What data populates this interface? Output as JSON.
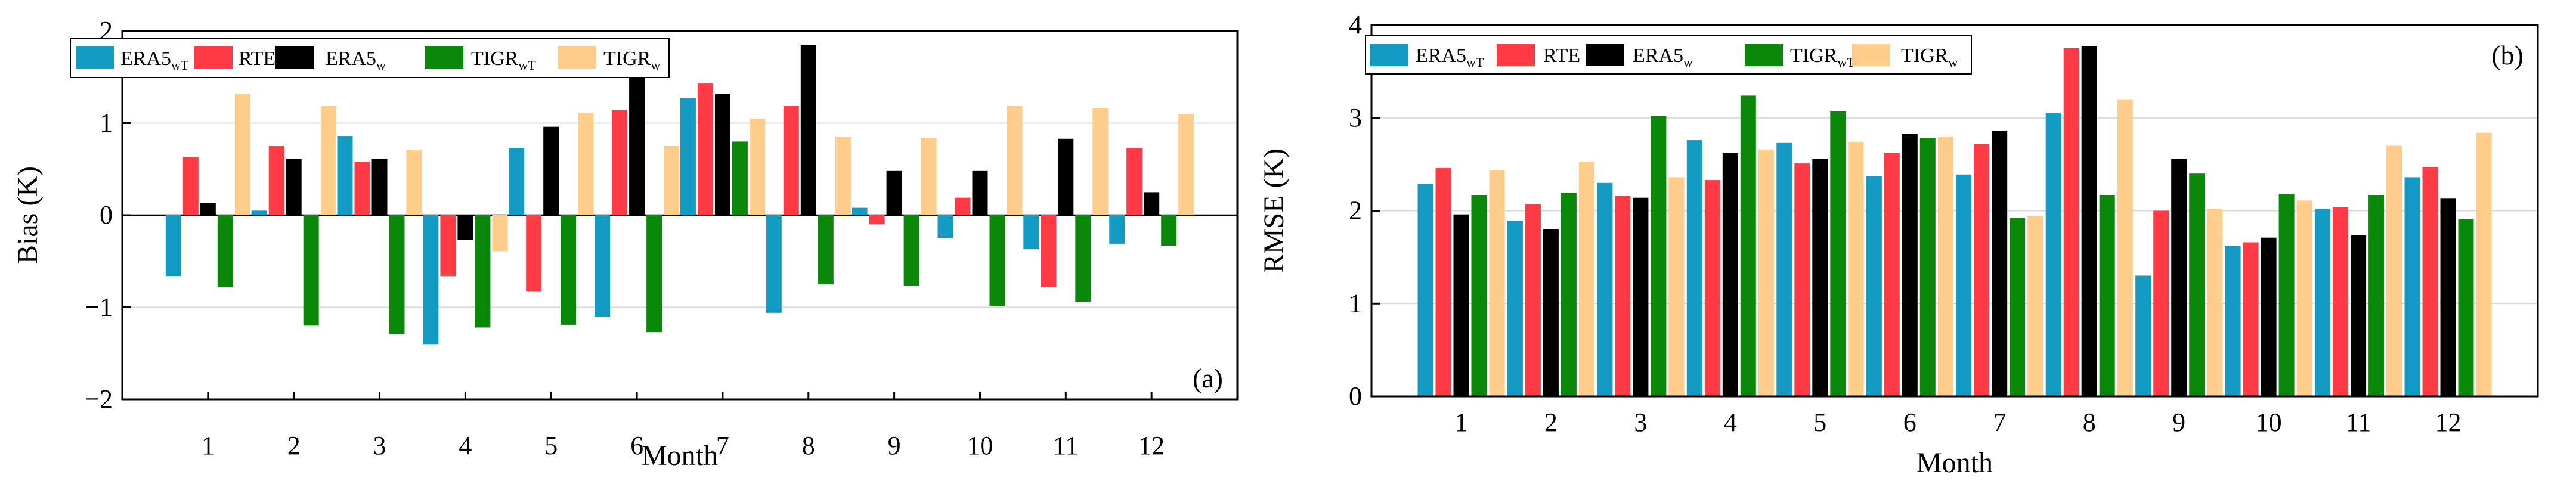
{
  "chart_data": [
    {
      "type": "bar",
      "panel_label": "(a)",
      "title": "",
      "xlabel": "Month",
      "ylabel": "Bias (K)",
      "ylim": [
        -2,
        2
      ],
      "yticks": [
        -2,
        -1,
        0,
        1,
        2
      ],
      "grid": true,
      "legend_position": "top-left",
      "categories": [
        "1",
        "2",
        "3",
        "4",
        "5",
        "6",
        "7",
        "8",
        "9",
        "10",
        "11",
        "12"
      ],
      "series": [
        {
          "name": "ERA5",
          "sub": "wT",
          "color": "#149bc4",
          "values": [
            -0.66,
            0.05,
            0.86,
            -1.4,
            0.73,
            -1.1,
            1.27,
            -1.06,
            0.08,
            -0.25,
            -0.37,
            -0.31
          ]
        },
        {
          "name": "RTE",
          "sub": "",
          "color": "#fe3a45",
          "values": [
            0.63,
            0.75,
            0.58,
            -0.66,
            -0.83,
            1.14,
            1.43,
            1.19,
            -0.1,
            0.19,
            -0.78,
            0.73
          ]
        },
        {
          "name": "ERA5",
          "sub": "w",
          "color": "#000000",
          "values": [
            0.13,
            0.61,
            0.61,
            -0.27,
            0.96,
            1.63,
            1.32,
            1.85,
            0.48,
            0.48,
            0.83,
            0.25
          ]
        },
        {
          "name": "TIGR",
          "sub": "wT",
          "color": "#0a880a",
          "values": [
            -0.78,
            -1.2,
            -1.29,
            -1.22,
            -1.19,
            -1.27,
            0.8,
            -0.75,
            -0.77,
            -0.99,
            -0.94,
            -0.33
          ]
        },
        {
          "name": "TIGR",
          "sub": "w",
          "color": "#fecd8c",
          "values": [
            1.32,
            1.19,
            0.71,
            -0.39,
            1.11,
            0.75,
            1.05,
            0.85,
            0.84,
            1.19,
            1.16,
            1.1
          ]
        }
      ]
    },
    {
      "type": "bar",
      "panel_label": "(b)",
      "title": "",
      "xlabel": "Month",
      "ylabel": "RMSE (K)",
      "ylim": [
        0,
        4
      ],
      "yticks": [
        0,
        1,
        2,
        3,
        4
      ],
      "grid": true,
      "legend_position": "top-left",
      "categories": [
        "1",
        "2",
        "3",
        "4",
        "5",
        "6",
        "7",
        "8",
        "9",
        "10",
        "11",
        "12"
      ],
      "series": [
        {
          "name": "ERA5",
          "sub": "wT",
          "color": "#149bc4",
          "values": [
            2.29,
            1.89,
            2.3,
            2.76,
            2.73,
            2.37,
            2.39,
            3.05,
            1.3,
            1.62,
            2.02,
            2.36
          ]
        },
        {
          "name": "RTE",
          "sub": "",
          "color": "#fe3a45",
          "values": [
            2.46,
            2.07,
            2.16,
            2.33,
            2.51,
            2.62,
            2.72,
            3.75,
            2.0,
            1.66,
            2.04,
            2.47
          ]
        },
        {
          "name": "ERA5",
          "sub": "w",
          "color": "#000000",
          "values": [
            1.96,
            1.8,
            2.14,
            2.62,
            2.56,
            2.83,
            2.86,
            3.77,
            2.56,
            1.71,
            1.74,
            2.13
          ]
        },
        {
          "name": "TIGR",
          "sub": "wT",
          "color": "#0a880a",
          "values": [
            2.17,
            2.19,
            3.02,
            3.24,
            3.07,
            2.78,
            1.92,
            2.17,
            2.4,
            2.18,
            2.17,
            1.91
          ]
        },
        {
          "name": "TIGR",
          "sub": "w",
          "color": "#fecd8c",
          "values": [
            2.44,
            2.53,
            2.36,
            2.66,
            2.74,
            2.8,
            1.94,
            3.2,
            2.02,
            2.11,
            2.7,
            2.84
          ]
        }
      ]
    }
  ]
}
